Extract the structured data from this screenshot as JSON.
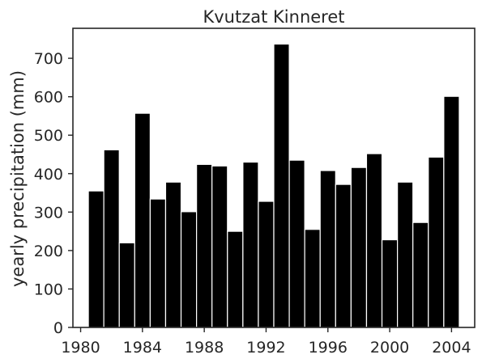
{
  "chart_data": {
    "type": "bar",
    "title": "Kvutzat Kinneret",
    "xlabel": "",
    "ylabel": "yearly precipitation (mm)",
    "x": [
      1981,
      1982,
      1983,
      1984,
      1985,
      1986,
      1987,
      1988,
      1989,
      1990,
      1991,
      1992,
      1993,
      1994,
      1995,
      1996,
      1997,
      1998,
      1999,
      2000,
      2001,
      2002,
      2003,
      2004
    ],
    "values": [
      355,
      462,
      220,
      557,
      334,
      378,
      301,
      424,
      420,
      250,
      430,
      328,
      737,
      435,
      255,
      408,
      372,
      416,
      452,
      228,
      378,
      273,
      443,
      601
    ],
    "xlim": [
      1979.5,
      2005.5
    ],
    "ylim": [
      0,
      778
    ],
    "xticks": [
      1980,
      1984,
      1988,
      1992,
      1996,
      2000,
      2004
    ],
    "xtick_labels": [
      "1980",
      "1984",
      "1988",
      "1992",
      "1996",
      "2000",
      "2004"
    ],
    "yticks": [
      0,
      100,
      200,
      300,
      400,
      500,
      600,
      700
    ],
    "ytick_labels": [
      "0",
      "100",
      "200",
      "300",
      "400",
      "500",
      "600",
      "700"
    ],
    "bar_color": "#000000",
    "bar_edge_color": "#ffffff",
    "grid": false
  }
}
